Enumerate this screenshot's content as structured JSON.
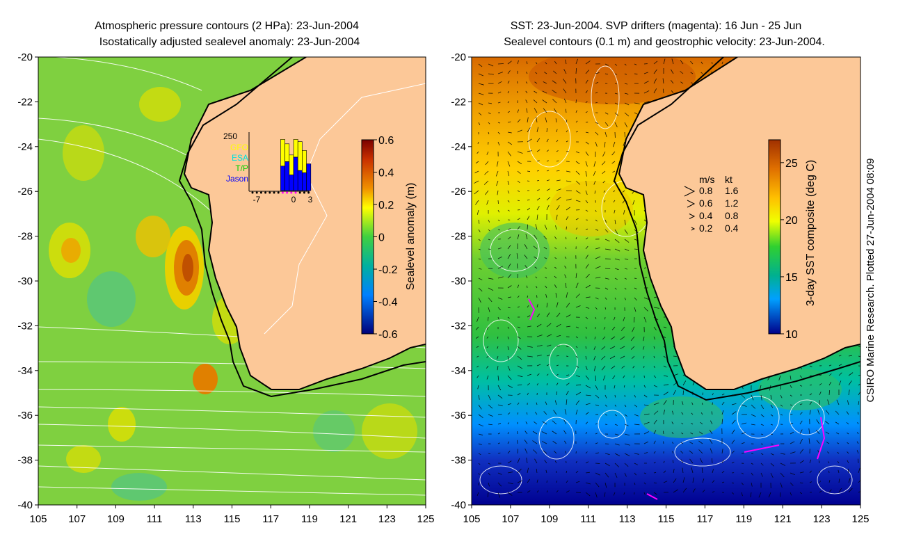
{
  "left_panel": {
    "title_line1": "Atmospheric pressure contours (2 HPa): 23-Jun-2004",
    "title_line2": "Isostatically adjusted sealevel anomaly: 23-Jun-2004",
    "colorbar_label": "Sealevel anomaly (m)",
    "colorbar_ticks": [
      "0.6",
      "0.4",
      "0.2",
      "0",
      "-0.2",
      "-0.4",
      "-0.6"
    ],
    "inset": {
      "ymax_label": "250",
      "legend": [
        {
          "label": "GFO",
          "color": "#ffff00"
        },
        {
          "label": "ESA",
          "color": "#00e0e0"
        },
        {
          "label": "T/P",
          "color": "#00d000"
        },
        {
          "label": "Jason",
          "color": "#0000ff"
        }
      ],
      "x_ticks": [
        "-7",
        "0",
        "3"
      ],
      "bars": [
        {
          "total": 0,
          "blue": 0
        },
        {
          "total": 0,
          "blue": 0
        },
        {
          "total": 0,
          "blue": 0
        },
        {
          "total": 0,
          "blue": 0
        },
        {
          "total": 0,
          "blue": 0
        },
        {
          "total": 0,
          "blue": 0
        },
        {
          "total": 0,
          "blue": 0
        },
        {
          "total": 230,
          "blue": 110
        },
        {
          "total": 210,
          "blue": 130
        },
        {
          "total": 160,
          "blue": 70
        },
        {
          "total": 230,
          "blue": 150
        },
        {
          "total": 220,
          "blue": 90
        },
        {
          "total": 180,
          "blue": 80
        },
        {
          "total": 120,
          "blue": 120
        }
      ]
    }
  },
  "right_panel": {
    "title_line1": "SST: 23-Jun-2004. SVP drifters (magenta): 16 Jun - 25 Jun",
    "title_line2": "Sealevel contours (0.1 m) and geostrophic velocity: 23-Jun-2004.",
    "colorbar_label": "3-day SST composite (deg C)",
    "colorbar_ticks": [
      "25",
      "20",
      "15",
      "10"
    ],
    "speed_legend": {
      "header_ms": "m/s",
      "header_kt": "kt",
      "rows": [
        {
          "ms": "0.8",
          "kt": "1.6"
        },
        {
          "ms": "0.6",
          "kt": "1.2"
        },
        {
          "ms": "0.4",
          "kt": "0.8"
        },
        {
          "ms": "0.2",
          "kt": "0.4"
        }
      ]
    }
  },
  "axes": {
    "lat_ticks": [
      "-20",
      "-22",
      "-24",
      "-26",
      "-28",
      "-30",
      "-32",
      "-34",
      "-36",
      "-38",
      "-40"
    ],
    "lon_ticks": [
      "105",
      "107",
      "109",
      "111",
      "113",
      "115",
      "117",
      "119",
      "121",
      "123",
      "125"
    ]
  },
  "credit": "CSIRO Marine Research. Plotted 27-Jun-2004 08:09"
}
